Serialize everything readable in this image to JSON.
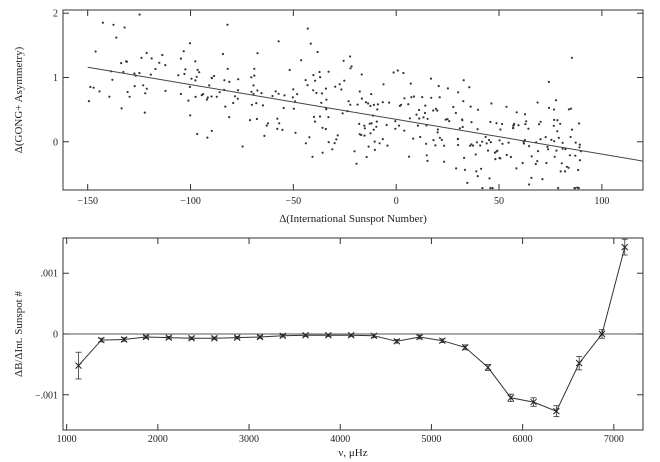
{
  "chart_data": [
    {
      "type": "scatter",
      "xlabel": "Δ(International Sunspot Number)",
      "ylabel": "Δ(GONG+ Asymmetry)",
      "xlim": [
        -162,
        120
      ],
      "ylim": [
        -0.75,
        2.05
      ],
      "x_ticks": [
        {
          "value": -150,
          "label": "−150"
        },
        {
          "value": -100,
          "label": "−100"
        },
        {
          "value": -50,
          "label": "−50"
        },
        {
          "value": 0,
          "label": "0"
        },
        {
          "value": 50,
          "label": "50"
        },
        {
          "value": 100,
          "label": "100"
        }
      ],
      "y_ticks": [
        {
          "value": 0,
          "label": "0"
        },
        {
          "value": 1,
          "label": "1"
        },
        {
          "value": 2,
          "label": "2"
        }
      ],
      "fit_line": {
        "x": [
          -150,
          120
        ],
        "y": [
          1.16,
          -0.3
        ]
      },
      "scatter": {
        "n": 380,
        "seed": 7,
        "x_range": [
          -150,
          90
        ],
        "y_intercept": 0.35,
        "slope": -0.0055,
        "scatter_sd": 0.38,
        "y_clip": [
          -0.72,
          1.98
        ]
      },
      "grid": false,
      "legend": "none"
    },
    {
      "type": "line",
      "xlabel": "ν, μHz",
      "ylabel": "ΔB/ΔInt. Sunspot #",
      "xlim": [
        960,
        7320
      ],
      "ylim": [
        -0.00158,
        0.00158
      ],
      "x_ticks": [
        {
          "value": 1000,
          "label": "1000"
        },
        {
          "value": 2000,
          "label": "2000"
        },
        {
          "value": 3000,
          "label": "3000"
        },
        {
          "value": 4000,
          "label": "4000"
        },
        {
          "value": 5000,
          "label": "5000"
        },
        {
          "value": 6000,
          "label": "6000"
        },
        {
          "value": 7000,
          "label": "7000"
        }
      ],
      "y_ticks": [
        {
          "value": -0.001,
          "label": "−.001"
        },
        {
          "value": 0,
          "label": "0"
        },
        {
          "value": 0.001,
          "label": ".001"
        }
      ],
      "reference_line_y": 0,
      "x": [
        1130,
        1380,
        1630,
        1870,
        2120,
        2370,
        2620,
        2870,
        3120,
        3370,
        3620,
        3870,
        4120,
        4370,
        4620,
        4870,
        5120,
        5370,
        5620,
        5870,
        6120,
        6370,
        6620,
        6870,
        7120
      ],
      "y": [
        -0.00052,
        -0.0001,
        -9e-05,
        -5e-05,
        -6e-05,
        -7e-05,
        -7e-05,
        -6e-05,
        -5e-05,
        -3e-05,
        -2e-05,
        -2e-05,
        -2e-05,
        -3e-05,
        -0.00012,
        -5e-05,
        -0.00011,
        -0.00022,
        -0.00055,
        -0.00105,
        -0.00112,
        -0.00127,
        -0.00048,
        0.0,
        0.00143
      ],
      "err": [
        0.00022,
        3e-05,
        3e-05,
        2e-05,
        2e-05,
        2e-05,
        2e-05,
        2e-05,
        2e-05,
        2e-05,
        2e-05,
        2e-05,
        2e-05,
        3e-05,
        3e-05,
        3e-05,
        3e-05,
        4e-05,
        5e-05,
        6e-05,
        7e-05,
        9e-05,
        0.00011,
        7e-05,
        0.00013
      ],
      "marker": "x",
      "grid": false,
      "legend": "none"
    }
  ]
}
